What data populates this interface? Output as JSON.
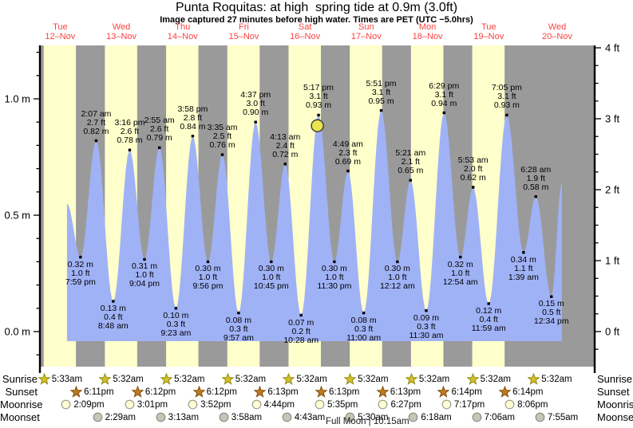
{
  "header": {
    "title": "Punta Roquitas: at high  spring tide at 0.9m (3.0ft)",
    "subtitle": "Image captured 27 minutes before high water. Times are PET (UTC −5.0hrs)"
  },
  "colors": {
    "day_band": "#ffffcc",
    "night_band": "#9a9a9a",
    "tide_fill": "#a0b2f6",
    "date_red": "#ff4040",
    "marker_yellow": "#ece44e",
    "marker_stroke": "#3a3a3a",
    "sunrise_star_fill": "#d2c229",
    "sunrise_star_stroke": "#96890e",
    "sunset_star_fill": "#bf7d1e",
    "sunset_star_stroke": "#805010",
    "moonrise_fill": "#ffffd6",
    "moonrise_stroke": "#9a9a8a",
    "moonset_fill": "#c6c6b8",
    "moonset_stroke": "#8d8d80",
    "axis": "#000000"
  },
  "chart_data": {
    "type": "area",
    "title": "Punta Roquitas: at high  spring tide at 0.9m (3.0ft)",
    "subtitle": "Image captured 27 minutes before high water. Times are PET (UTC −5.0hrs)",
    "days": [
      {
        "weekday": "Tue",
        "date": "12–Nov"
      },
      {
        "weekday": "Wed",
        "date": "13–Nov"
      },
      {
        "weekday": "Thu",
        "date": "14–Nov"
      },
      {
        "weekday": "Fri",
        "date": "15–Nov"
      },
      {
        "weekday": "Sat",
        "date": "16–Nov"
      },
      {
        "weekday": "Sun",
        "date": "17–Nov"
      },
      {
        "weekday": "Mon",
        "date": "18–Nov"
      },
      {
        "weekday": "Tue",
        "date": "19–Nov"
      },
      {
        "weekday": "Wed",
        "date": "20–Nov"
      }
    ],
    "y_axis_left": {
      "unit": "m",
      "labels": [
        "0.0 m",
        "0.5 m",
        "1.0 m"
      ],
      "values": [
        0,
        0.5,
        1.0
      ],
      "minor_step_m": 0.1
    },
    "y_axis_right": {
      "unit": "ft",
      "labels": [
        "0 ft",
        "1 ft",
        "2 ft",
        "3 ft",
        "4 ft"
      ],
      "values": [
        0,
        1,
        2,
        3,
        4
      ],
      "minor_step_ft": 0.25
    },
    "ylim_m": [
      -0.15,
      1.23
    ],
    "grid": false,
    "tide_events": [
      {
        "type": "low",
        "day": 0,
        "time": "7:59 pm",
        "m": 0.32,
        "ft": 1.0
      },
      {
        "type": "high",
        "day": 1,
        "time": "2:07 am",
        "m": 0.82,
        "ft": 2.7
      },
      {
        "type": "low",
        "day": 1,
        "time": "8:48 am",
        "m": 0.13,
        "ft": 0.4
      },
      {
        "type": "high",
        "day": 1,
        "time": "3:16 pm",
        "m": 0.78,
        "ft": 2.6
      },
      {
        "type": "low",
        "day": 1,
        "time": "9:04 pm",
        "m": 0.31,
        "ft": 1.0
      },
      {
        "type": "high",
        "day": 2,
        "time": "2:55 am",
        "m": 0.79,
        "ft": 2.6
      },
      {
        "type": "low",
        "day": 2,
        "time": "9:23 am",
        "m": 0.1,
        "ft": 0.3
      },
      {
        "type": "high",
        "day": 2,
        "time": "3:58 pm",
        "m": 0.84,
        "ft": 2.8
      },
      {
        "type": "low",
        "day": 2,
        "time": "9:56 pm",
        "m": 0.3,
        "ft": 1.0
      },
      {
        "type": "high",
        "day": 3,
        "time": "3:35 am",
        "m": 0.76,
        "ft": 2.5
      },
      {
        "type": "low",
        "day": 3,
        "time": "9:57 am",
        "m": 0.08,
        "ft": 0.3
      },
      {
        "type": "high",
        "day": 3,
        "time": "4:37 pm",
        "m": 0.9,
        "ft": 3.0
      },
      {
        "type": "low",
        "day": 3,
        "time": "10:45 pm",
        "m": 0.3,
        "ft": 1.0
      },
      {
        "type": "high",
        "day": 4,
        "time": "4:13 am",
        "m": 0.72,
        "ft": 2.4
      },
      {
        "type": "low",
        "day": 4,
        "time": "10:28 am",
        "m": 0.07,
        "ft": 0.2
      },
      {
        "type": "high",
        "day": 4,
        "time": "5:17 pm",
        "m": 0.93,
        "ft": 3.1,
        "current": true
      },
      {
        "type": "low",
        "day": 4,
        "time": "11:30 pm",
        "m": 0.3,
        "ft": 1.0
      },
      {
        "type": "high",
        "day": 5,
        "time": "4:49 am",
        "m": 0.69,
        "ft": 2.3
      },
      {
        "type": "low",
        "day": 5,
        "time": "11:00 am",
        "m": 0.08,
        "ft": 0.3
      },
      {
        "type": "high",
        "day": 5,
        "time": "5:51 pm",
        "m": 0.95,
        "ft": 3.1
      },
      {
        "type": "low",
        "day": 6,
        "time": "12:12 am",
        "m": 0.3,
        "ft": 1.0
      },
      {
        "type": "high",
        "day": 6,
        "time": "5:21 am",
        "m": 0.65,
        "ft": 2.1
      },
      {
        "type": "low",
        "day": 6,
        "time": "11:30 am",
        "m": 0.09,
        "ft": 0.3
      },
      {
        "type": "high",
        "day": 6,
        "time": "6:29 pm",
        "m": 0.94,
        "ft": 3.1
      },
      {
        "type": "low",
        "day": 7,
        "time": "12:54 am",
        "m": 0.32,
        "ft": 1.0
      },
      {
        "type": "high",
        "day": 7,
        "time": "5:53 am",
        "m": 0.62,
        "ft": 2.0
      },
      {
        "type": "low",
        "day": 7,
        "time": "11:59 am",
        "m": 0.12,
        "ft": 0.4
      },
      {
        "type": "high",
        "day": 7,
        "time": "7:05 pm",
        "m": 0.93,
        "ft": 3.1
      },
      {
        "type": "low",
        "day": 8,
        "time": "1:39 am",
        "m": 0.34,
        "ft": 1.1
      },
      {
        "type": "high",
        "day": 8,
        "time": "6:28 am",
        "m": 0.58,
        "ft": 1.9
      },
      {
        "type": "low",
        "day": 8,
        "time": "12:34 pm",
        "m": 0.15,
        "ft": 0.5
      }
    ],
    "current_marker": {
      "day": 4,
      "time": "4:50 pm",
      "m": 0.905
    },
    "curve_clip": {
      "start": {
        "day": 0,
        "time": "2:40 pm",
        "m": 0.55
      },
      "end": {
        "day": 8,
        "time": "4:40 pm",
        "m": 0.64
      }
    },
    "daylight_bands_days": [
      0,
      1,
      2,
      3,
      4,
      5,
      6,
      7
    ],
    "legend": null
  },
  "sun_moon": {
    "rows": [
      {
        "id": "sunrise",
        "label": "Sunrise",
        "icon": "sunrise-star",
        "entries": [
          {
            "day": 0,
            "time": "5:33am"
          },
          {
            "day": 1,
            "time": "5:32am"
          },
          {
            "day": 2,
            "time": "5:32am"
          },
          {
            "day": 3,
            "time": "5:32am"
          },
          {
            "day": 4,
            "time": "5:32am"
          },
          {
            "day": 5,
            "time": "5:32am"
          },
          {
            "day": 6,
            "time": "5:32am"
          },
          {
            "day": 7,
            "time": "5:32am"
          },
          {
            "day": 8,
            "time": "5:32am"
          }
        ]
      },
      {
        "id": "sunset",
        "label": "Sunset",
        "icon": "sunset-star",
        "entries": [
          {
            "day": 0,
            "time": "6:11pm"
          },
          {
            "day": 1,
            "time": "6:12pm"
          },
          {
            "day": 2,
            "time": "6:12pm"
          },
          {
            "day": 3,
            "time": "6:13pm"
          },
          {
            "day": 4,
            "time": "6:13pm"
          },
          {
            "day": 5,
            "time": "6:13pm"
          },
          {
            "day": 6,
            "time": "6:14pm"
          },
          {
            "day": 7,
            "time": "6:14pm"
          }
        ]
      },
      {
        "id": "moonrise",
        "label": "Moonrise",
        "icon": "moonrise-circle",
        "entries": [
          {
            "day": 0,
            "time": "2:09pm"
          },
          {
            "day": 1,
            "time": "3:01pm"
          },
          {
            "day": 2,
            "time": "3:52pm"
          },
          {
            "day": 3,
            "time": "4:44pm"
          },
          {
            "day": 4,
            "time": "5:35pm"
          },
          {
            "day": 5,
            "time": "6:27pm"
          },
          {
            "day": 6,
            "time": "7:17pm"
          },
          {
            "day": 7,
            "time": "8:06pm"
          }
        ]
      },
      {
        "id": "moonset",
        "label": "Moonset",
        "icon": "moonset-circle",
        "entries": [
          {
            "day": 1,
            "time": "2:29am"
          },
          {
            "day": 2,
            "time": "3:13am"
          },
          {
            "day": 3,
            "time": "3:58am"
          },
          {
            "day": 4,
            "time": "4:43am"
          },
          {
            "day": 5,
            "time": "5:30am"
          },
          {
            "day": 6,
            "time": "6:18am"
          },
          {
            "day": 7,
            "time": "7:06am"
          },
          {
            "day": 8,
            "time": "7:55am"
          }
        ]
      }
    ],
    "footnote": "Full Moon | 10:15am"
  }
}
